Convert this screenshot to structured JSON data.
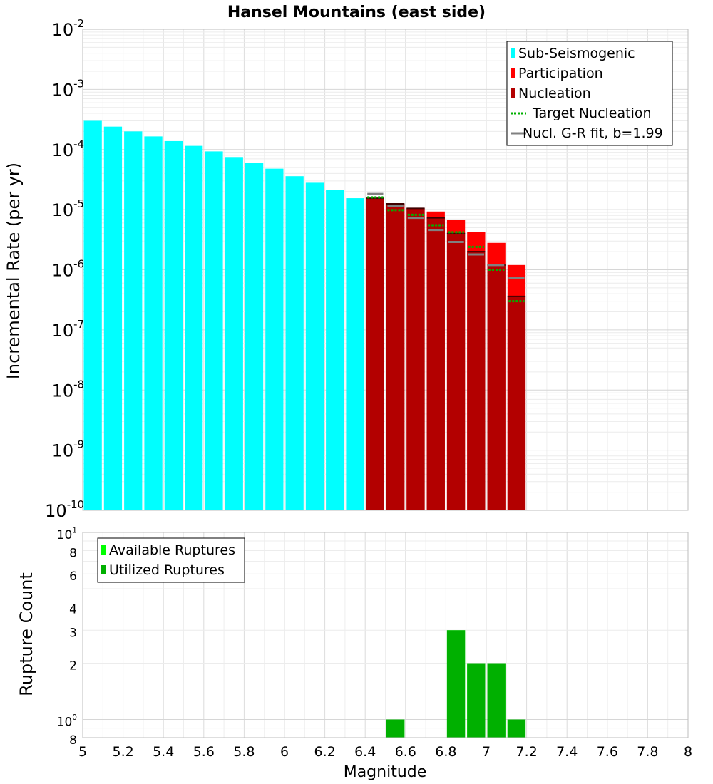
{
  "chart_data": [
    {
      "type": "bar",
      "title": "Hansel Mountains (east side)",
      "xlabel": "",
      "ylabel": "Incremental Rate (per yr)",
      "yscale": "log",
      "xlim": [
        5,
        8
      ],
      "ylim": [
        1e-10,
        0.01
      ],
      "grid": true,
      "legend_position": "top-right",
      "y_tick_labels": [
        {
          "v": 1e-10,
          "base": "10",
          "exp": "-10"
        },
        {
          "v": 1e-09,
          "base": "10",
          "exp": "-9"
        },
        {
          "v": 1e-08,
          "base": "10",
          "exp": "-8"
        },
        {
          "v": 1e-07,
          "base": "10",
          "exp": "-7"
        },
        {
          "v": 1e-06,
          "base": "10",
          "exp": "-6"
        },
        {
          "v": 1e-05,
          "base": "10",
          "exp": "-5"
        },
        {
          "v": 0.0001,
          "base": "10",
          "exp": "-4"
        },
        {
          "v": 0.001,
          "base": "10",
          "exp": "-3"
        },
        {
          "v": 0.01,
          "base": "10",
          "exp": "-2"
        }
      ],
      "legend": [
        {
          "label": "Sub-Seismogenic",
          "kind": "box",
          "color": "#00ffff"
        },
        {
          "label": "Participation",
          "kind": "box",
          "color": "#ff0000"
        },
        {
          "label": "Nucleation",
          "kind": "box",
          "color": "#b30000"
        },
        {
          "label": "Target Nucleation",
          "kind": "dotted",
          "color": "#00b000"
        },
        {
          "label": "Nucl. G-R fit, b=1.99",
          "kind": "line",
          "color": "#808080"
        }
      ],
      "series": [
        {
          "name": "Sub-Seismogenic",
          "color": "#00ffff",
          "x": [
            5.05,
            5.15,
            5.25,
            5.35,
            5.45,
            5.55,
            5.65,
            5.75,
            5.85,
            5.95,
            6.05,
            6.15,
            6.25,
            6.35
          ],
          "values": [
            0.0003,
            0.00024,
            0.0002,
            0.000165,
            0.000138,
            0.000115,
            9.3e-05,
            7.5e-05,
            6e-05,
            4.8e-05,
            3.6e-05,
            2.8e-05,
            2.1e-05,
            1.55e-05
          ]
        },
        {
          "name": "Participation",
          "color": "#ff0000",
          "x": [
            6.45,
            6.55,
            6.65,
            6.75,
            6.85,
            6.95,
            7.05,
            7.15
          ],
          "values": [
            1.55e-05,
            1.25e-05,
            1.05e-05,
            9.3e-06,
            6.8e-06,
            4.2e-06,
            2.8e-06,
            1.2e-06
          ]
        },
        {
          "name": "Nucleation",
          "color": "#b30000",
          "x": [
            6.45,
            6.55,
            6.65,
            6.75,
            6.85,
            6.95,
            7.05,
            7.15
          ],
          "values": [
            1.55e-05,
            1.25e-05,
            1.05e-05,
            7.3e-06,
            4e-06,
            2e-06,
            1.2e-06,
            3.6e-07
          ]
        },
        {
          "name": "Target Nucleation",
          "color": "#00b000",
          "style": "dotted",
          "x": [
            6.45,
            6.55,
            6.65,
            6.75,
            6.85,
            6.95,
            7.05,
            7.15
          ],
          "values": [
            1.6e-05,
            9.8e-06,
            8.2e-06,
            5.5e-06,
            4.2e-06,
            2.4e-06,
            1e-06,
            3e-07
          ]
        },
        {
          "name": "Nucl. G-R fit, b=1.99",
          "color": "#808080",
          "style": "line",
          "x": [
            6.45,
            6.55,
            6.65,
            6.75,
            6.85,
            6.95,
            7.05,
            7.15
          ],
          "values": [
            1.82e-05,
            1.16e-05,
            7.3e-06,
            4.6e-06,
            2.9e-06,
            1.8e-06,
            1.2e-06,
            7.4e-07
          ]
        }
      ]
    },
    {
      "type": "bar",
      "title": "",
      "xlabel": "Magnitude",
      "ylabel": "Rupture Count",
      "yscale": "log",
      "xlim": [
        5,
        8
      ],
      "ylim": [
        0.8,
        10
      ],
      "grid": true,
      "legend_position": "top-left",
      "x_tick_labels": [
        "5",
        "5.2",
        "5.4",
        "5.6",
        "5.8",
        "6",
        "6.2",
        "6.4",
        "6.6",
        "6.8",
        "7",
        "7.2",
        "7.4",
        "7.6",
        "7.8",
        "8"
      ],
      "y_tick_labels": [
        {
          "v": 0.8,
          "base": "8",
          "exp": ""
        },
        {
          "v": 1,
          "base": "10",
          "exp": "0"
        },
        {
          "v": 2,
          "base": "2",
          "exp": ""
        },
        {
          "v": 3,
          "base": "3",
          "exp": ""
        },
        {
          "v": 4,
          "base": "4",
          "exp": ""
        },
        {
          "v": 6,
          "base": "6",
          "exp": ""
        },
        {
          "v": 8,
          "base": "8",
          "exp": ""
        },
        {
          "v": 10,
          "base": "10",
          "exp": "1"
        }
      ],
      "legend": [
        {
          "label": "Available Ruptures",
          "kind": "box",
          "color": "#00ff00"
        },
        {
          "label": "Utilized Ruptures",
          "kind": "box",
          "color": "#00b000"
        }
      ],
      "series": [
        {
          "name": "Available Ruptures",
          "color": "#00ff00",
          "x": [
            6.55,
            6.85,
            6.95,
            7.05,
            7.15
          ],
          "values": [
            1,
            3,
            2,
            2,
            1
          ]
        },
        {
          "name": "Utilized Ruptures",
          "color": "#00b000",
          "x": [
            6.55,
            6.85,
            6.95,
            7.05,
            7.15
          ],
          "values": [
            1,
            3,
            2,
            2,
            1
          ]
        }
      ]
    }
  ]
}
